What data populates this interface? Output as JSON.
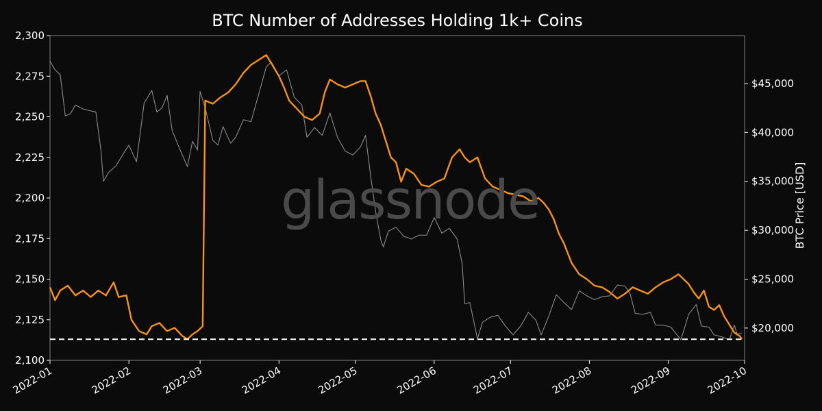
{
  "chart_data": {
    "type": "line",
    "title": "BTC Number of Addresses Holding 1k+ Coins",
    "watermark": "glassnode",
    "xlabel": "",
    "ylabel_left": "",
    "ylabel_right": "BTC Price [USD]",
    "x_tick_labels": [
      "2022-01",
      "2022-02",
      "2022-03",
      "2022-04",
      "2022-05",
      "2022-06",
      "2022-07",
      "2022-08",
      "2022-09",
      "2022-10"
    ],
    "y_left_ticks": [
      2100,
      2125,
      2150,
      2175,
      2200,
      2225,
      2250,
      2275,
      2300
    ],
    "y_left_tick_labels": [
      "2,100",
      "2,125",
      "2,150",
      "2,175",
      "2,200",
      "2,225",
      "2,250",
      "2,275",
      "2,300"
    ],
    "y_right_ticks": [
      20000,
      25000,
      30000,
      35000,
      40000,
      45000
    ],
    "y_right_tick_labels": [
      "$20,000",
      "$25,000",
      "$30,000",
      "$35,000",
      "$40,000",
      "$45,000"
    ],
    "ylim_left": [
      2100,
      2300
    ],
    "ylim_right": [
      16700,
      49900
    ],
    "xlim": [
      "2022-01-01",
      "2022-10-01"
    ],
    "reference_line": {
      "y": 2113,
      "style": "dashed",
      "color": "#ffffff"
    },
    "grid": false,
    "series": [
      {
        "axis": "left",
        "color": "#f7931a",
        "points": [
          [
            "2022-01-01",
            2145
          ],
          [
            "2022-01-03",
            2137
          ],
          [
            "2022-01-05",
            2143
          ],
          [
            "2022-01-08",
            2146
          ],
          [
            "2022-01-11",
            2140
          ],
          [
            "2022-01-14",
            2143
          ],
          [
            "2022-01-17",
            2139
          ],
          [
            "2022-01-20",
            2143
          ],
          [
            "2022-01-23",
            2140
          ],
          [
            "2022-01-26",
            2148
          ],
          [
            "2022-01-28",
            2139
          ],
          [
            "2022-01-31",
            2140
          ],
          [
            "2022-02-02",
            2125
          ],
          [
            "2022-02-05",
            2118
          ],
          [
            "2022-02-08",
            2116
          ],
          [
            "2022-02-10",
            2121
          ],
          [
            "2022-02-13",
            2123
          ],
          [
            "2022-02-16",
            2118
          ],
          [
            "2022-02-19",
            2120
          ],
          [
            "2022-02-22",
            2115
          ],
          [
            "2022-02-24",
            2113
          ],
          [
            "2022-02-26",
            2116
          ],
          [
            "2022-02-28",
            2118
          ],
          [
            "2022-03-02",
            2121
          ],
          [
            "2022-03-03",
            2260
          ],
          [
            "2022-03-06",
            2258
          ],
          [
            "2022-03-09",
            2262
          ],
          [
            "2022-03-12",
            2265
          ],
          [
            "2022-03-15",
            2270
          ],
          [
            "2022-03-18",
            2277
          ],
          [
            "2022-03-21",
            2282
          ],
          [
            "2022-03-24",
            2285
          ],
          [
            "2022-03-27",
            2288
          ],
          [
            "2022-03-29",
            2283
          ],
          [
            "2022-04-01",
            2275
          ],
          [
            "2022-04-03",
            2268
          ],
          [
            "2022-04-05",
            2260
          ],
          [
            "2022-04-08",
            2255
          ],
          [
            "2022-04-11",
            2250
          ],
          [
            "2022-04-14",
            2248
          ],
          [
            "2022-04-17",
            2252
          ],
          [
            "2022-04-19",
            2265
          ],
          [
            "2022-04-21",
            2273
          ],
          [
            "2022-04-24",
            2270
          ],
          [
            "2022-04-27",
            2268
          ],
          [
            "2022-04-30",
            2270
          ],
          [
            "2022-05-03",
            2272
          ],
          [
            "2022-05-05",
            2272
          ],
          [
            "2022-05-07",
            2263
          ],
          [
            "2022-05-09",
            2252
          ],
          [
            "2022-05-11",
            2245
          ],
          [
            "2022-05-13",
            2235
          ],
          [
            "2022-05-15",
            2225
          ],
          [
            "2022-05-17",
            2222
          ],
          [
            "2022-05-19",
            2210
          ],
          [
            "2022-05-21",
            2218
          ],
          [
            "2022-05-24",
            2215
          ],
          [
            "2022-05-27",
            2208
          ],
          [
            "2022-05-30",
            2207
          ],
          [
            "2022-06-02",
            2210
          ],
          [
            "2022-06-05",
            2212
          ],
          [
            "2022-06-08",
            2225
          ],
          [
            "2022-06-11",
            2230
          ],
          [
            "2022-06-13",
            2225
          ],
          [
            "2022-06-15",
            2222
          ],
          [
            "2022-06-18",
            2225
          ],
          [
            "2022-06-21",
            2212
          ],
          [
            "2022-06-24",
            2207
          ],
          [
            "2022-06-27",
            2205
          ],
          [
            "2022-06-30",
            2203
          ],
          [
            "2022-07-03",
            2202
          ],
          [
            "2022-07-06",
            2201
          ],
          [
            "2022-07-09",
            2198
          ],
          [
            "2022-07-12",
            2200
          ],
          [
            "2022-07-14",
            2197
          ],
          [
            "2022-07-16",
            2193
          ],
          [
            "2022-07-18",
            2187
          ],
          [
            "2022-07-20",
            2178
          ],
          [
            "2022-07-22",
            2172
          ],
          [
            "2022-07-25",
            2160
          ],
          [
            "2022-07-28",
            2153
          ],
          [
            "2022-07-31",
            2150
          ],
          [
            "2022-08-03",
            2146
          ],
          [
            "2022-08-06",
            2145
          ],
          [
            "2022-08-09",
            2142
          ],
          [
            "2022-08-12",
            2138
          ],
          [
            "2022-08-15",
            2141
          ],
          [
            "2022-08-18",
            2145
          ],
          [
            "2022-08-21",
            2143
          ],
          [
            "2022-08-24",
            2141
          ],
          [
            "2022-08-27",
            2145
          ],
          [
            "2022-08-30",
            2148
          ],
          [
            "2022-09-02",
            2150
          ],
          [
            "2022-09-05",
            2153
          ],
          [
            "2022-09-07",
            2150
          ],
          [
            "2022-09-09",
            2147
          ],
          [
            "2022-09-11",
            2142
          ],
          [
            "2022-09-13",
            2138
          ],
          [
            "2022-09-15",
            2143
          ],
          [
            "2022-09-17",
            2133
          ],
          [
            "2022-09-19",
            2131
          ],
          [
            "2022-09-21",
            2134
          ],
          [
            "2022-09-23",
            2127
          ],
          [
            "2022-09-25",
            2122
          ],
          [
            "2022-09-27",
            2117
          ],
          [
            "2022-09-29",
            2115
          ],
          [
            "2022-09-30",
            2113
          ]
        ]
      },
      {
        "axis": "right",
        "color": "#8c8c8c",
        "points": [
          [
            "2022-01-01",
            47300
          ],
          [
            "2022-01-03",
            46400
          ],
          [
            "2022-01-05",
            45900
          ],
          [
            "2022-01-07",
            41700
          ],
          [
            "2022-01-09",
            41900
          ],
          [
            "2022-01-11",
            42800
          ],
          [
            "2022-01-14",
            42400
          ],
          [
            "2022-01-17",
            42200
          ],
          [
            "2022-01-19",
            42100
          ],
          [
            "2022-01-21",
            38200
          ],
          [
            "2022-01-22",
            35000
          ],
          [
            "2022-01-24",
            35900
          ],
          [
            "2022-01-27",
            36600
          ],
          [
            "2022-01-30",
            37900
          ],
          [
            "2022-02-01",
            38700
          ],
          [
            "2022-02-04",
            37000
          ],
          [
            "2022-02-07",
            43000
          ],
          [
            "2022-02-10",
            44300
          ],
          [
            "2022-02-12",
            42100
          ],
          [
            "2022-02-14",
            42500
          ],
          [
            "2022-02-16",
            43800
          ],
          [
            "2022-02-18",
            40200
          ],
          [
            "2022-02-21",
            38300
          ],
          [
            "2022-02-24",
            36500
          ],
          [
            "2022-02-26",
            39100
          ],
          [
            "2022-02-28",
            38200
          ],
          [
            "2022-03-01",
            44200
          ],
          [
            "2022-03-03",
            42500
          ],
          [
            "2022-03-06",
            39200
          ],
          [
            "2022-03-08",
            38700
          ],
          [
            "2022-03-10",
            40600
          ],
          [
            "2022-03-13",
            38900
          ],
          [
            "2022-03-15",
            39500
          ],
          [
            "2022-03-18",
            41300
          ],
          [
            "2022-03-21",
            41100
          ],
          [
            "2022-03-24",
            43900
          ],
          [
            "2022-03-27",
            46700
          ],
          [
            "2022-03-29",
            47200
          ],
          [
            "2022-04-01",
            45800
          ],
          [
            "2022-04-04",
            46400
          ],
          [
            "2022-04-07",
            43600
          ],
          [
            "2022-04-10",
            42800
          ],
          [
            "2022-04-12",
            39500
          ],
          [
            "2022-04-15",
            40500
          ],
          [
            "2022-04-18",
            39700
          ],
          [
            "2022-04-21",
            42000
          ],
          [
            "2022-04-24",
            39500
          ],
          [
            "2022-04-27",
            38100
          ],
          [
            "2022-04-30",
            37700
          ],
          [
            "2022-05-03",
            38500
          ],
          [
            "2022-05-05",
            39700
          ],
          [
            "2022-05-07",
            35600
          ],
          [
            "2022-05-09",
            31900
          ],
          [
            "2022-05-11",
            29000
          ],
          [
            "2022-05-12",
            28300
          ],
          [
            "2022-05-14",
            29900
          ],
          [
            "2022-05-17",
            30300
          ],
          [
            "2022-05-20",
            29400
          ],
          [
            "2022-05-23",
            29100
          ],
          [
            "2022-05-26",
            29500
          ],
          [
            "2022-05-29",
            29500
          ],
          [
            "2022-06-01",
            31300
          ],
          [
            "2022-06-04",
            29700
          ],
          [
            "2022-06-07",
            30200
          ],
          [
            "2022-06-10",
            29100
          ],
          [
            "2022-06-12",
            26600
          ],
          [
            "2022-06-13",
            22500
          ],
          [
            "2022-06-15",
            22600
          ],
          [
            "2022-06-18",
            18900
          ],
          [
            "2022-06-20",
            20600
          ],
          [
            "2022-06-23",
            21100
          ],
          [
            "2022-06-26",
            21300
          ],
          [
            "2022-06-29",
            20200
          ],
          [
            "2022-07-02",
            19300
          ],
          [
            "2022-07-05",
            20200
          ],
          [
            "2022-07-08",
            21600
          ],
          [
            "2022-07-11",
            20800
          ],
          [
            "2022-07-13",
            19300
          ],
          [
            "2022-07-16",
            21200
          ],
          [
            "2022-07-19",
            23400
          ],
          [
            "2022-07-22",
            22600
          ],
          [
            "2022-07-25",
            21900
          ],
          [
            "2022-07-28",
            23800
          ],
          [
            "2022-07-31",
            23300
          ],
          [
            "2022-08-03",
            22900
          ],
          [
            "2022-08-06",
            23200
          ],
          [
            "2022-08-09",
            23300
          ],
          [
            "2022-08-12",
            24400
          ],
          [
            "2022-08-15",
            24300
          ],
          [
            "2022-08-17",
            23500
          ],
          [
            "2022-08-19",
            21500
          ],
          [
            "2022-08-22",
            21400
          ],
          [
            "2022-08-25",
            21600
          ],
          [
            "2022-08-27",
            20300
          ],
          [
            "2022-08-30",
            20300
          ],
          [
            "2022-09-02",
            20100
          ],
          [
            "2022-09-06",
            18800
          ],
          [
            "2022-09-09",
            21400
          ],
          [
            "2022-09-12",
            22400
          ],
          [
            "2022-09-14",
            20200
          ],
          [
            "2022-09-17",
            20100
          ],
          [
            "2022-09-19",
            19300
          ],
          [
            "2022-09-22",
            19100
          ],
          [
            "2022-09-25",
            18800
          ],
          [
            "2022-09-27",
            20300
          ],
          [
            "2022-09-28",
            19400
          ],
          [
            "2022-09-30",
            19500
          ]
        ]
      }
    ]
  }
}
